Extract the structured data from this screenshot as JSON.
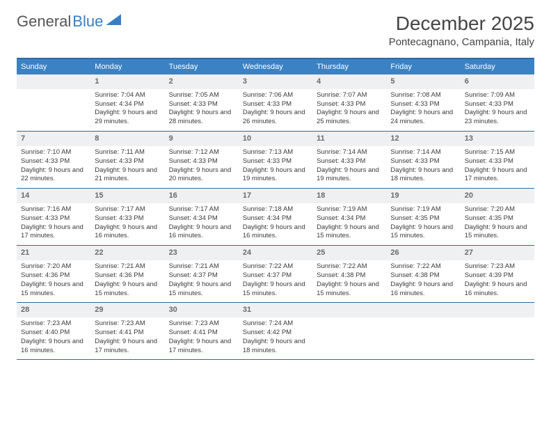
{
  "logo": {
    "text_gray": "General",
    "text_blue": "Blue"
  },
  "title": "December 2025",
  "location": "Pontecagnano, Campania, Italy",
  "colors": {
    "header_bar": "#3a82c4",
    "rule": "#2f6aa3",
    "daynum_bg": "#eef0f2"
  },
  "days_of_week": [
    "Sunday",
    "Monday",
    "Tuesday",
    "Wednesday",
    "Thursday",
    "Friday",
    "Saturday"
  ],
  "weeks": [
    [
      {},
      {
        "n": "1",
        "sunrise": "Sunrise: 7:04 AM",
        "sunset": "Sunset: 4:34 PM",
        "daylight": "Daylight: 9 hours and 29 minutes."
      },
      {
        "n": "2",
        "sunrise": "Sunrise: 7:05 AM",
        "sunset": "Sunset: 4:33 PM",
        "daylight": "Daylight: 9 hours and 28 minutes."
      },
      {
        "n": "3",
        "sunrise": "Sunrise: 7:06 AM",
        "sunset": "Sunset: 4:33 PM",
        "daylight": "Daylight: 9 hours and 26 minutes."
      },
      {
        "n": "4",
        "sunrise": "Sunrise: 7:07 AM",
        "sunset": "Sunset: 4:33 PM",
        "daylight": "Daylight: 9 hours and 25 minutes."
      },
      {
        "n": "5",
        "sunrise": "Sunrise: 7:08 AM",
        "sunset": "Sunset: 4:33 PM",
        "daylight": "Daylight: 9 hours and 24 minutes."
      },
      {
        "n": "6",
        "sunrise": "Sunrise: 7:09 AM",
        "sunset": "Sunset: 4:33 PM",
        "daylight": "Daylight: 9 hours and 23 minutes."
      }
    ],
    [
      {
        "n": "7",
        "sunrise": "Sunrise: 7:10 AM",
        "sunset": "Sunset: 4:33 PM",
        "daylight": "Daylight: 9 hours and 22 minutes."
      },
      {
        "n": "8",
        "sunrise": "Sunrise: 7:11 AM",
        "sunset": "Sunset: 4:33 PM",
        "daylight": "Daylight: 9 hours and 21 minutes."
      },
      {
        "n": "9",
        "sunrise": "Sunrise: 7:12 AM",
        "sunset": "Sunset: 4:33 PM",
        "daylight": "Daylight: 9 hours and 20 minutes."
      },
      {
        "n": "10",
        "sunrise": "Sunrise: 7:13 AM",
        "sunset": "Sunset: 4:33 PM",
        "daylight": "Daylight: 9 hours and 19 minutes."
      },
      {
        "n": "11",
        "sunrise": "Sunrise: 7:14 AM",
        "sunset": "Sunset: 4:33 PM",
        "daylight": "Daylight: 9 hours and 19 minutes."
      },
      {
        "n": "12",
        "sunrise": "Sunrise: 7:14 AM",
        "sunset": "Sunset: 4:33 PM",
        "daylight": "Daylight: 9 hours and 18 minutes."
      },
      {
        "n": "13",
        "sunrise": "Sunrise: 7:15 AM",
        "sunset": "Sunset: 4:33 PM",
        "daylight": "Daylight: 9 hours and 17 minutes."
      }
    ],
    [
      {
        "n": "14",
        "sunrise": "Sunrise: 7:16 AM",
        "sunset": "Sunset: 4:33 PM",
        "daylight": "Daylight: 9 hours and 17 minutes."
      },
      {
        "n": "15",
        "sunrise": "Sunrise: 7:17 AM",
        "sunset": "Sunset: 4:33 PM",
        "daylight": "Daylight: 9 hours and 16 minutes."
      },
      {
        "n": "16",
        "sunrise": "Sunrise: 7:17 AM",
        "sunset": "Sunset: 4:34 PM",
        "daylight": "Daylight: 9 hours and 16 minutes."
      },
      {
        "n": "17",
        "sunrise": "Sunrise: 7:18 AM",
        "sunset": "Sunset: 4:34 PM",
        "daylight": "Daylight: 9 hours and 16 minutes."
      },
      {
        "n": "18",
        "sunrise": "Sunrise: 7:19 AM",
        "sunset": "Sunset: 4:34 PM",
        "daylight": "Daylight: 9 hours and 15 minutes."
      },
      {
        "n": "19",
        "sunrise": "Sunrise: 7:19 AM",
        "sunset": "Sunset: 4:35 PM",
        "daylight": "Daylight: 9 hours and 15 minutes."
      },
      {
        "n": "20",
        "sunrise": "Sunrise: 7:20 AM",
        "sunset": "Sunset: 4:35 PM",
        "daylight": "Daylight: 9 hours and 15 minutes."
      }
    ],
    [
      {
        "n": "21",
        "sunrise": "Sunrise: 7:20 AM",
        "sunset": "Sunset: 4:36 PM",
        "daylight": "Daylight: 9 hours and 15 minutes."
      },
      {
        "n": "22",
        "sunrise": "Sunrise: 7:21 AM",
        "sunset": "Sunset: 4:36 PM",
        "daylight": "Daylight: 9 hours and 15 minutes."
      },
      {
        "n": "23",
        "sunrise": "Sunrise: 7:21 AM",
        "sunset": "Sunset: 4:37 PM",
        "daylight": "Daylight: 9 hours and 15 minutes."
      },
      {
        "n": "24",
        "sunrise": "Sunrise: 7:22 AM",
        "sunset": "Sunset: 4:37 PM",
        "daylight": "Daylight: 9 hours and 15 minutes."
      },
      {
        "n": "25",
        "sunrise": "Sunrise: 7:22 AM",
        "sunset": "Sunset: 4:38 PM",
        "daylight": "Daylight: 9 hours and 15 minutes."
      },
      {
        "n": "26",
        "sunrise": "Sunrise: 7:22 AM",
        "sunset": "Sunset: 4:38 PM",
        "daylight": "Daylight: 9 hours and 16 minutes."
      },
      {
        "n": "27",
        "sunrise": "Sunrise: 7:23 AM",
        "sunset": "Sunset: 4:39 PM",
        "daylight": "Daylight: 9 hours and 16 minutes."
      }
    ],
    [
      {
        "n": "28",
        "sunrise": "Sunrise: 7:23 AM",
        "sunset": "Sunset: 4:40 PM",
        "daylight": "Daylight: 9 hours and 16 minutes."
      },
      {
        "n": "29",
        "sunrise": "Sunrise: 7:23 AM",
        "sunset": "Sunset: 4:41 PM",
        "daylight": "Daylight: 9 hours and 17 minutes."
      },
      {
        "n": "30",
        "sunrise": "Sunrise: 7:23 AM",
        "sunset": "Sunset: 4:41 PM",
        "daylight": "Daylight: 9 hours and 17 minutes."
      },
      {
        "n": "31",
        "sunrise": "Sunrise: 7:24 AM",
        "sunset": "Sunset: 4:42 PM",
        "daylight": "Daylight: 9 hours and 18 minutes."
      },
      {},
      {},
      {}
    ]
  ]
}
